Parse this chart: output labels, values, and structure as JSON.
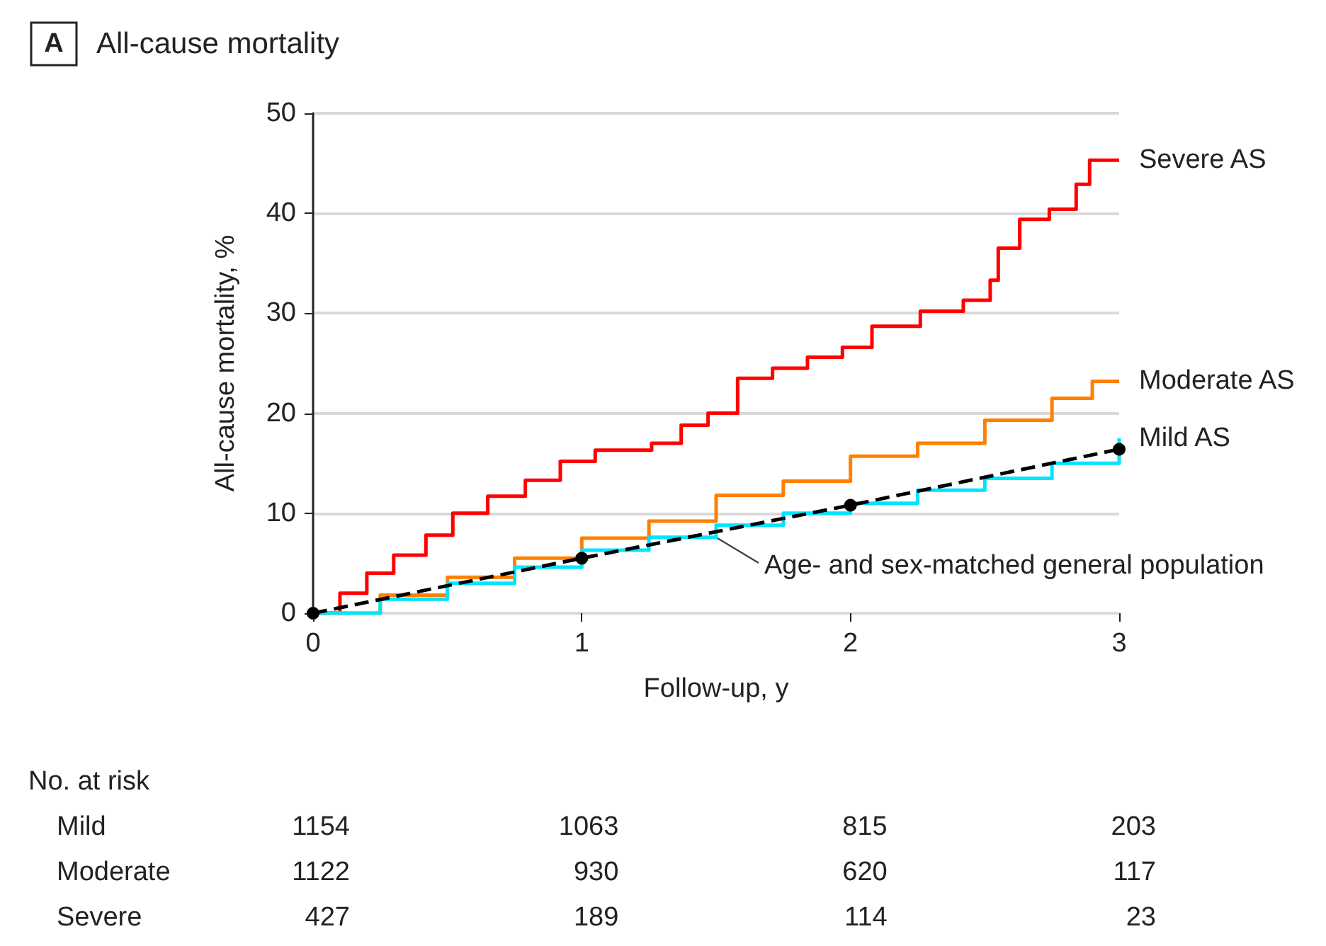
{
  "chart_data": {
    "type": "step",
    "title": "All-cause mortality",
    "xlabel": "Follow-up, y",
    "ylabel": "All-cause mortality, %",
    "xlim": [
      0,
      3
    ],
    "xticks": [
      0,
      1,
      2,
      3
    ],
    "ylim": [
      0,
      50
    ],
    "yticks": [
      0,
      10,
      20,
      30,
      40,
      50
    ],
    "grid": "y",
    "legend": false,
    "series": [
      {
        "name": "Severe AS",
        "color": "#ff0000",
        "x": [
          0,
          0.1,
          0.2,
          0.3,
          0.42,
          0.52,
          0.65,
          0.79,
          0.92,
          1.05,
          1.26,
          1.37,
          1.47,
          1.58,
          1.71,
          1.84,
          1.97,
          2.08,
          2.26,
          2.42,
          2.52,
          2.55,
          2.63,
          2.74,
          2.84,
          2.89,
          3
        ],
        "values": [
          0,
          2,
          4,
          5.8,
          7.8,
          10,
          11.7,
          13.3,
          15.2,
          16.3,
          17,
          18.8,
          20,
          23.5,
          24.5,
          25.6,
          26.6,
          28.7,
          30.2,
          31.3,
          33.3,
          36.5,
          39.4,
          40.4,
          42.9,
          45.3,
          45.3
        ]
      },
      {
        "name": "Moderate AS",
        "color": "#ff8000",
        "x": [
          0,
          0.25,
          0.5,
          0.75,
          1,
          1.25,
          1.5,
          1.75,
          2,
          2.25,
          2.5,
          2.75,
          2.9,
          3
        ],
        "values": [
          0,
          1.8,
          3.6,
          5.5,
          7.5,
          9.2,
          11.8,
          13.2,
          15.7,
          17,
          19.3,
          21.5,
          23.2,
          23.2
        ]
      },
      {
        "name": "Mild AS",
        "color": "#00e5ff",
        "x": [
          0,
          0.25,
          0.5,
          0.75,
          1,
          1.25,
          1.5,
          1.75,
          2,
          2.25,
          2.5,
          2.75,
          3
        ],
        "values": [
          0,
          1.4,
          3,
          4.6,
          6.3,
          7.6,
          8.8,
          10,
          11,
          12.3,
          13.5,
          15,
          17.5
        ]
      },
      {
        "name": "Age- and sex-matched general population",
        "type": "line",
        "color": "#000000",
        "line_style": "dashed",
        "marker": "circle",
        "x": [
          0,
          1,
          2,
          3
        ],
        "values": [
          0,
          5.5,
          10.8,
          16.4
        ]
      }
    ],
    "annotations": [
      "A",
      "No. at risk",
      "Mild",
      "1154",
      "1063",
      "815",
      "203",
      "Moderate",
      "1122",
      "930",
      "620",
      "117",
      "Severe",
      "427",
      "189",
      "114",
      "23"
    ]
  }
}
